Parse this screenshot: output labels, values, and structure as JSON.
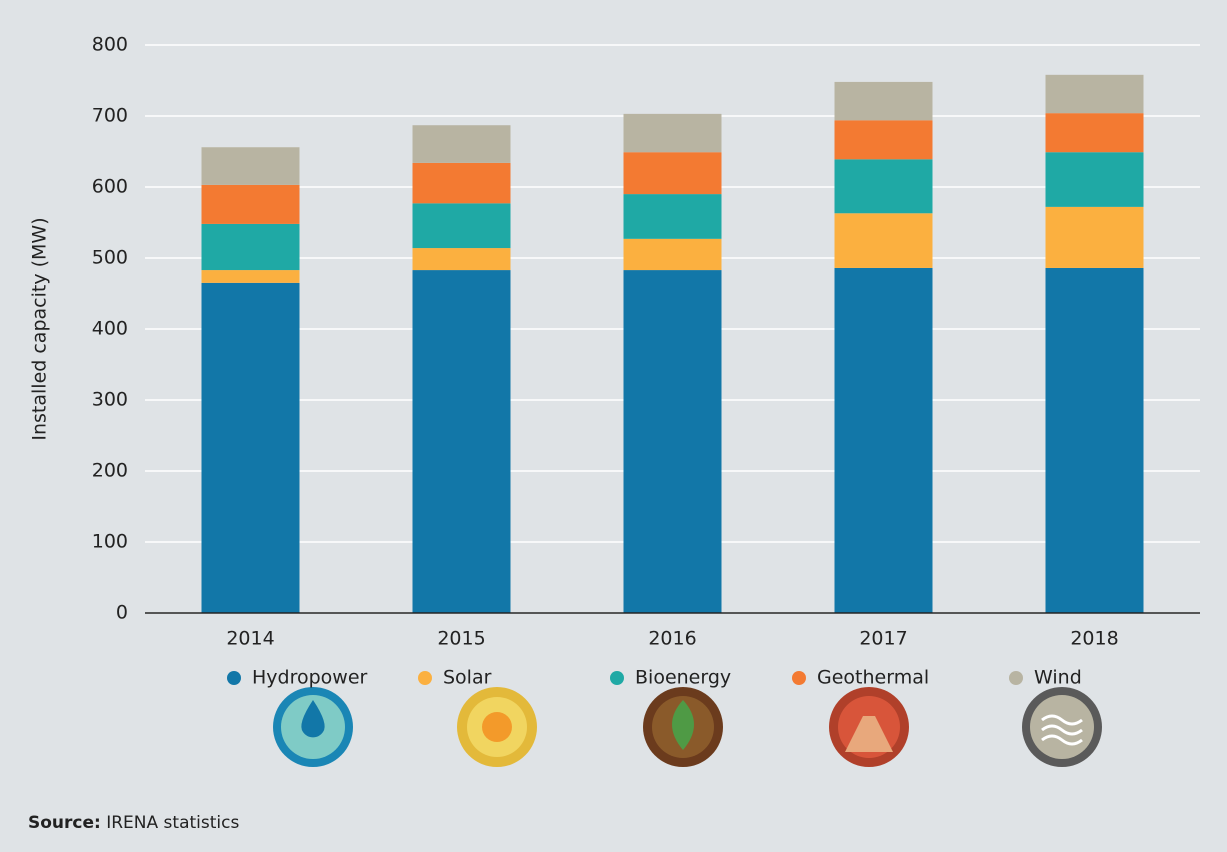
{
  "chart_data": {
    "type": "stacked_bar",
    "y_label": "Installed capacity (MW)",
    "categories": [
      "2014",
      "2015",
      "2016",
      "2017",
      "2018"
    ],
    "series": [
      {
        "name": "Hydropower",
        "color": "#1277a8",
        "values": [
          465,
          483,
          483,
          486,
          486
        ]
      },
      {
        "name": "Solar",
        "color": "#fbb040",
        "values": [
          18,
          31,
          44,
          77,
          86
        ]
      },
      {
        "name": "Bioenergy",
        "color": "#1fa9a5",
        "values": [
          65,
          63,
          63,
          76,
          77
        ]
      },
      {
        "name": "Geothermal",
        "color": "#f37a32",
        "values": [
          55,
          57,
          59,
          55,
          55
        ]
      },
      {
        "name": "Wind",
        "color": "#b8b4a2",
        "values": [
          53,
          53,
          54,
          54,
          54
        ]
      }
    ],
    "ylim": [
      0,
      800
    ],
    "yticks": [
      0,
      100,
      200,
      300,
      400,
      500,
      600,
      700,
      800
    ],
    "grid": true,
    "legend": "bottom",
    "source_label": "Source:",
    "source": "IRENA statistics"
  }
}
